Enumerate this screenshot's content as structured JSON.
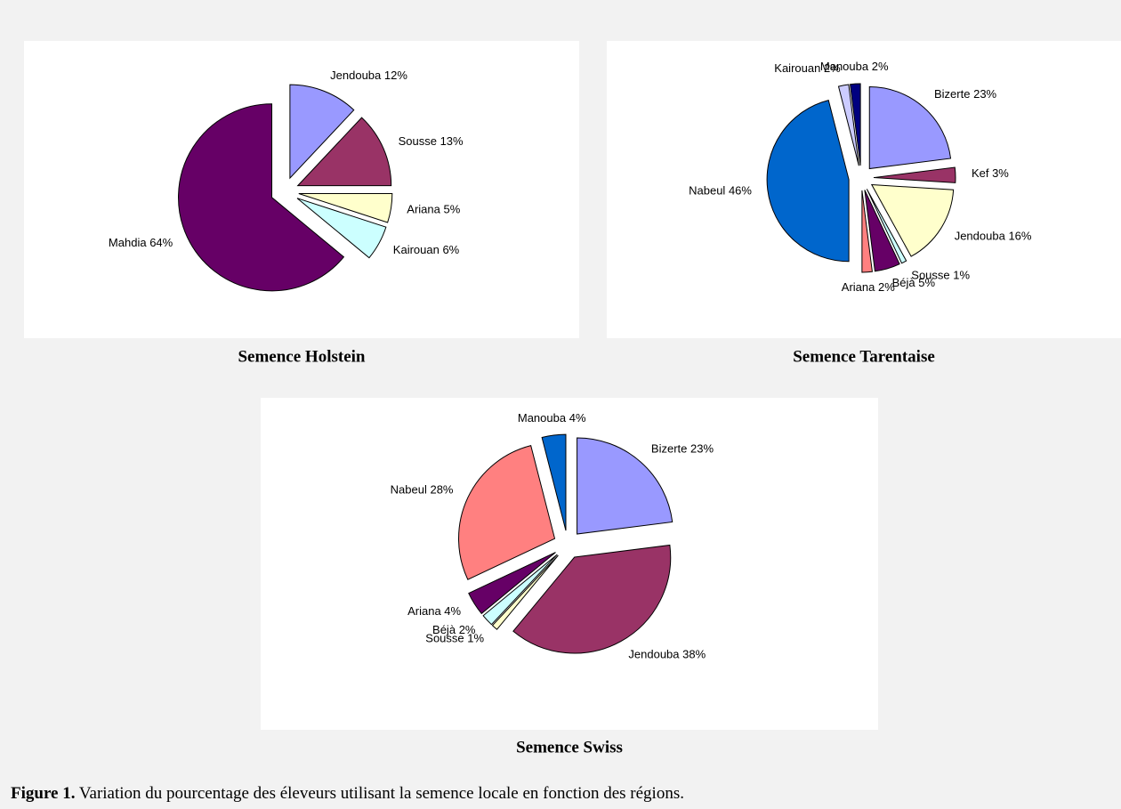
{
  "chart_data": [
    {
      "type": "pie",
      "title": "Semence Holstein",
      "categories": [
        "Jendouba",
        "Sousse",
        "Ariana",
        "Kairouan ",
        "Mahdia"
      ],
      "values": [
        12,
        13,
        5,
        6,
        64
      ],
      "value_labels": [
        "12%",
        "13%",
        "5%",
        "6%",
        "64%"
      ],
      "colors": [
        "#9999ff",
        "#993366",
        "#ffffcc",
        "#ccffff",
        "#660066"
      ]
    },
    {
      "type": "pie",
      "title": "Semence Tarentaise",
      "categories": [
        "Bizerte",
        "Kef",
        "Jendouba",
        "Sousse",
        "Béjà",
        "Ariana",
        "Nabeul",
        "Kairouan",
        "Manouba"
      ],
      "values": [
        23,
        3,
        16,
        1,
        5,
        2,
        46,
        2,
        2
      ],
      "value_labels": [
        "23%",
        "3%",
        "16%",
        "1%",
        "5%",
        "2%",
        "46%",
        "2%",
        "2%"
      ],
      "colors": [
        "#9999ff",
        "#993366",
        "#ffffcc",
        "#ccffff",
        "#660066",
        "#ff8080",
        "#0066cc",
        "#ccccff",
        "#000080"
      ]
    },
    {
      "type": "pie",
      "title": "Semence Swiss",
      "categories": [
        "Bizerte ",
        "Jendouba",
        "Sousse",
        "Béjà",
        "Ariana",
        "Nabeul",
        "Manouba"
      ],
      "values": [
        23,
        38,
        1,
        2,
        4,
        28,
        4
      ],
      "value_labels": [
        "23%",
        "38%",
        "1%",
        "2%",
        "4%",
        "28%",
        "4%"
      ],
      "colors": [
        "#9999ff",
        "#993366",
        "#ffffcc",
        "#ccffff",
        "#660066",
        "#ff8080",
        "#0066cc"
      ]
    }
  ],
  "caption": {
    "label": "Figure 1.",
    "text": "Variation du pourcentage des éleveurs utilisant la semence locale en fonction des régions."
  }
}
